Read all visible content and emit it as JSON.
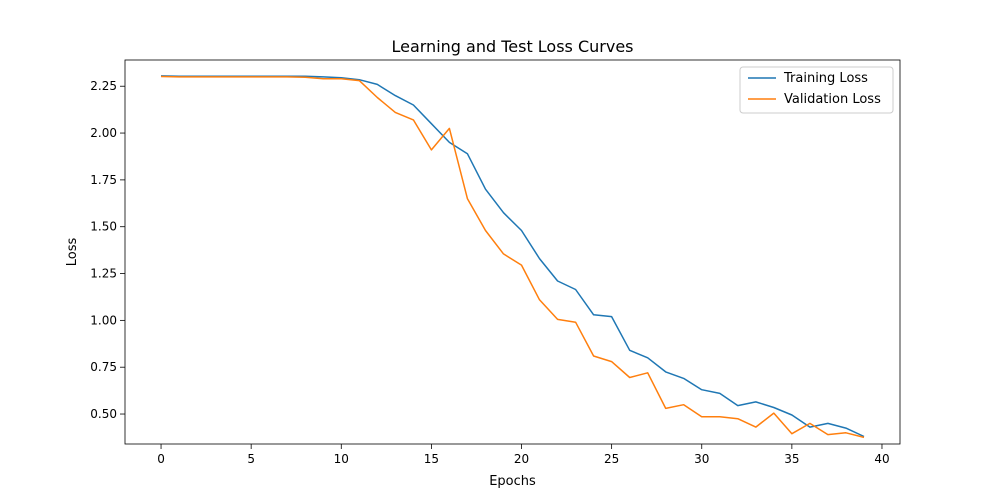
{
  "chart_data": {
    "type": "line",
    "title": "Learning and Test Loss Curves",
    "xlabel": "Epochs",
    "ylabel": "Loss",
    "xlim": [
      -2,
      41
    ],
    "ylim": [
      0.34,
      2.39
    ],
    "x_ticks": [
      0,
      5,
      10,
      15,
      20,
      25,
      30,
      35,
      40
    ],
    "y_ticks": [
      0.5,
      0.75,
      1.0,
      1.25,
      1.5,
      1.75,
      2.0,
      2.25
    ],
    "grid": false,
    "legend_position": "top-right",
    "x": [
      0,
      1,
      2,
      3,
      4,
      5,
      6,
      7,
      8,
      9,
      10,
      11,
      12,
      13,
      14,
      15,
      16,
      17,
      18,
      19,
      20,
      21,
      22,
      23,
      24,
      25,
      26,
      27,
      28,
      29,
      30,
      31,
      32,
      33,
      34,
      35,
      36,
      37,
      38,
      39
    ],
    "series": [
      {
        "name": "Training Loss",
        "color": "#1f77b4",
        "values": [
          2.305,
          2.303,
          2.303,
          2.303,
          2.303,
          2.303,
          2.303,
          2.303,
          2.303,
          2.3,
          2.295,
          2.285,
          2.26,
          2.2,
          2.15,
          2.05,
          1.95,
          1.89,
          1.7,
          1.575,
          1.48,
          1.33,
          1.21,
          1.165,
          1.03,
          1.02,
          0.84,
          0.8,
          0.725,
          0.69,
          0.63,
          0.61,
          0.545,
          0.565,
          0.535,
          0.495,
          0.43,
          0.45,
          0.425,
          0.38
        ]
      },
      {
        "name": "Validation Loss",
        "color": "#ff7f0e",
        "values": [
          2.302,
          2.3,
          2.3,
          2.3,
          2.3,
          2.3,
          2.3,
          2.3,
          2.298,
          2.29,
          2.29,
          2.28,
          2.19,
          2.11,
          2.07,
          1.91,
          2.025,
          1.65,
          1.48,
          1.355,
          1.295,
          1.11,
          1.005,
          0.99,
          0.81,
          0.78,
          0.695,
          0.72,
          0.53,
          0.55,
          0.485,
          0.485,
          0.475,
          0.43,
          0.505,
          0.395,
          0.45,
          0.39,
          0.4,
          0.375
        ]
      }
    ]
  }
}
